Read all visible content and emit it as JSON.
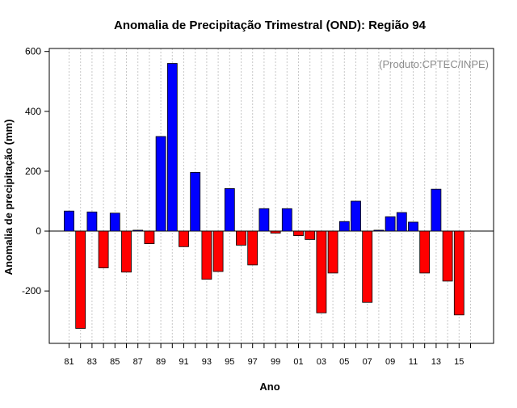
{
  "chart_data": {
    "type": "bar",
    "title": "Anomalia de Precipitação Trimestral (OND): Região 94",
    "xlabel": "Ano",
    "ylabel": "Anomalia de precipitação (mm)",
    "credit": "(Produto:CPTEC/INPE)",
    "ylim": [
      -375,
      610
    ],
    "yticks": [
      -200,
      0,
      200,
      400,
      600
    ],
    "yticks_labels": [
      "-200",
      "0",
      "200",
      "400",
      "600"
    ],
    "categories": [
      "81",
      "82",
      "83",
      "84",
      "85",
      "86",
      "87",
      "88",
      "89",
      "90",
      "91",
      "92",
      "93",
      "94",
      "95",
      "96",
      "97",
      "98",
      "99",
      "00",
      "01",
      "02",
      "03",
      "04",
      "05",
      "06",
      "07",
      "08",
      "09",
      "10",
      "11",
      "12",
      "13",
      "14",
      "15"
    ],
    "xtick_labels": [
      "81",
      "83",
      "85",
      "87",
      "89",
      "91",
      "93",
      "95",
      "97",
      "99",
      "01",
      "03",
      "05",
      "07",
      "09",
      "11",
      "13",
      "15"
    ],
    "values": [
      67,
      -325,
      64,
      -123,
      60,
      -137,
      3,
      -42,
      316,
      560,
      -52,
      196,
      -161,
      -135,
      142,
      -47,
      -113,
      75,
      -7,
      75,
      -15,
      -28,
      -273,
      -140,
      32,
      100,
      -238,
      3,
      48,
      62,
      30,
      -140,
      140,
      -167,
      -280
    ],
    "positive_color": "#0000ff",
    "negative_color": "#ff0000"
  }
}
